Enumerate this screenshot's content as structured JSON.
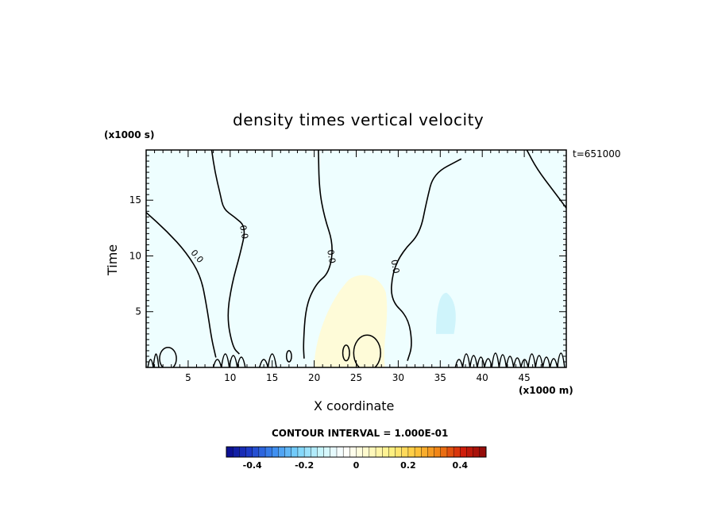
{
  "chart_data": {
    "type": "heatmap",
    "title": "density times vertical velocity",
    "xlabel": "X coordinate",
    "ylabel": "Time",
    "x_unit_label": "(x1000 m)",
    "y_unit_label": "(x1000 s)",
    "time_label": "t=651000",
    "xlim": [
      0,
      50
    ],
    "ylim": [
      0,
      19.5
    ],
    "x_ticks": [
      5,
      10,
      15,
      20,
      25,
      30,
      35,
      40,
      45
    ],
    "y_ticks": [
      5,
      10,
      15
    ],
    "contour_interval_label": "CONTOUR INTERVAL = 1.000E-01",
    "colorbar": {
      "range": [
        -0.5,
        0.5
      ],
      "tick_values": [
        -0.4,
        -0.2,
        0,
        0.2,
        0.4
      ],
      "tick_labels": [
        "-0.4",
        "-0.2",
        "0",
        "0.2",
        "0.4"
      ],
      "colors_low_to_high": [
        "#0a0a8c",
        "#1e3cc8",
        "#3c8cf0",
        "#78d2fa",
        "#c8f5fc",
        "#ffffff",
        "#fffac8",
        "#fff082",
        "#ffc83c",
        "#f08214",
        "#d21e0a",
        "#8c0a0a"
      ]
    },
    "zero_contour_label": "0.0",
    "fields": [
      {
        "name": "background",
        "value": 0.03,
        "color": "#eefeff"
      },
      {
        "name": "positive plume",
        "value": 0.1,
        "color": "#fefbd8",
        "x_range": [
          20,
          29
        ],
        "y_range": [
          0,
          8.5
        ]
      },
      {
        "name": "negative patch",
        "value": -0.1,
        "color": "#cff4fb",
        "x_range": [
          34.5,
          37
        ],
        "y_range": [
          3,
          6.7
        ]
      }
    ],
    "zero_contours": [
      {
        "name": "contour-a",
        "points": [
          [
            0,
            13.9
          ],
          [
            2.5,
            12.2
          ],
          [
            4.8,
            10.3
          ],
          [
            6.5,
            8.2
          ],
          [
            7.2,
            5.5
          ],
          [
            7.8,
            2.5
          ],
          [
            8.3,
            0.9
          ]
        ]
      },
      {
        "name": "contour-b",
        "points": [
          [
            7.8,
            19.5
          ],
          [
            8.2,
            17.5
          ],
          [
            8.8,
            15.6
          ],
          [
            9.2,
            14.2
          ],
          [
            10.5,
            13.5
          ],
          [
            11.9,
            12.6
          ],
          [
            11.2,
            10.2
          ],
          [
            10.2,
            7.5
          ],
          [
            9.6,
            4.5
          ],
          [
            10.3,
            1.8
          ],
          [
            11.1,
            1.2
          ]
        ]
      },
      {
        "name": "contour-c",
        "points": [
          [
            20.5,
            19.5
          ],
          [
            20.6,
            16
          ],
          [
            21.2,
            13.5
          ],
          [
            22.3,
            11
          ],
          [
            21.8,
            8.5
          ],
          [
            20.2,
            7.5
          ],
          [
            19,
            5.5
          ],
          [
            18.7,
            2
          ],
          [
            18.8,
            0.8
          ]
        ]
      },
      {
        "name": "contour-d",
        "points": [
          [
            37.5,
            18.7
          ],
          [
            34.2,
            17.4
          ],
          [
            33.4,
            15
          ],
          [
            32.6,
            12
          ],
          [
            30.5,
            10.4
          ],
          [
            29.3,
            8.5
          ],
          [
            29.1,
            6
          ],
          [
            31.2,
            4.5
          ],
          [
            31.7,
            2
          ],
          [
            31.1,
            0.6
          ]
        ]
      },
      {
        "name": "contour-e",
        "points": [
          [
            45.3,
            19.5
          ],
          [
            46.5,
            17.8
          ],
          [
            48.5,
            15.8
          ],
          [
            50,
            14.3
          ]
        ]
      }
    ],
    "closed_contours": [
      {
        "name": "ring-left",
        "cx": 2.6,
        "cy": 0.8,
        "rx": 1.0,
        "ry": 1.0
      },
      {
        "name": "ring-mid",
        "cx": 26.3,
        "cy": 1.3,
        "rx": 1.6,
        "ry": 1.6
      },
      {
        "name": "ring-small-1",
        "cx": 17.0,
        "cy": 1.0,
        "rx": 0.3,
        "ry": 0.5
      },
      {
        "name": "ring-small-2",
        "cx": 23.8,
        "cy": 1.3,
        "rx": 0.4,
        "ry": 0.7
      }
    ],
    "zero_label_positions": [
      [
        5.8,
        9.8
      ],
      [
        11.3,
        12.1
      ],
      [
        21.7,
        9.9
      ],
      [
        29.3,
        9.0
      ]
    ],
    "wavy_contour_segments": [
      [
        0.2,
        1.5
      ],
      [
        8.0,
        11.8
      ],
      [
        13.5,
        15.5
      ],
      [
        36.8,
        49.8
      ]
    ]
  }
}
